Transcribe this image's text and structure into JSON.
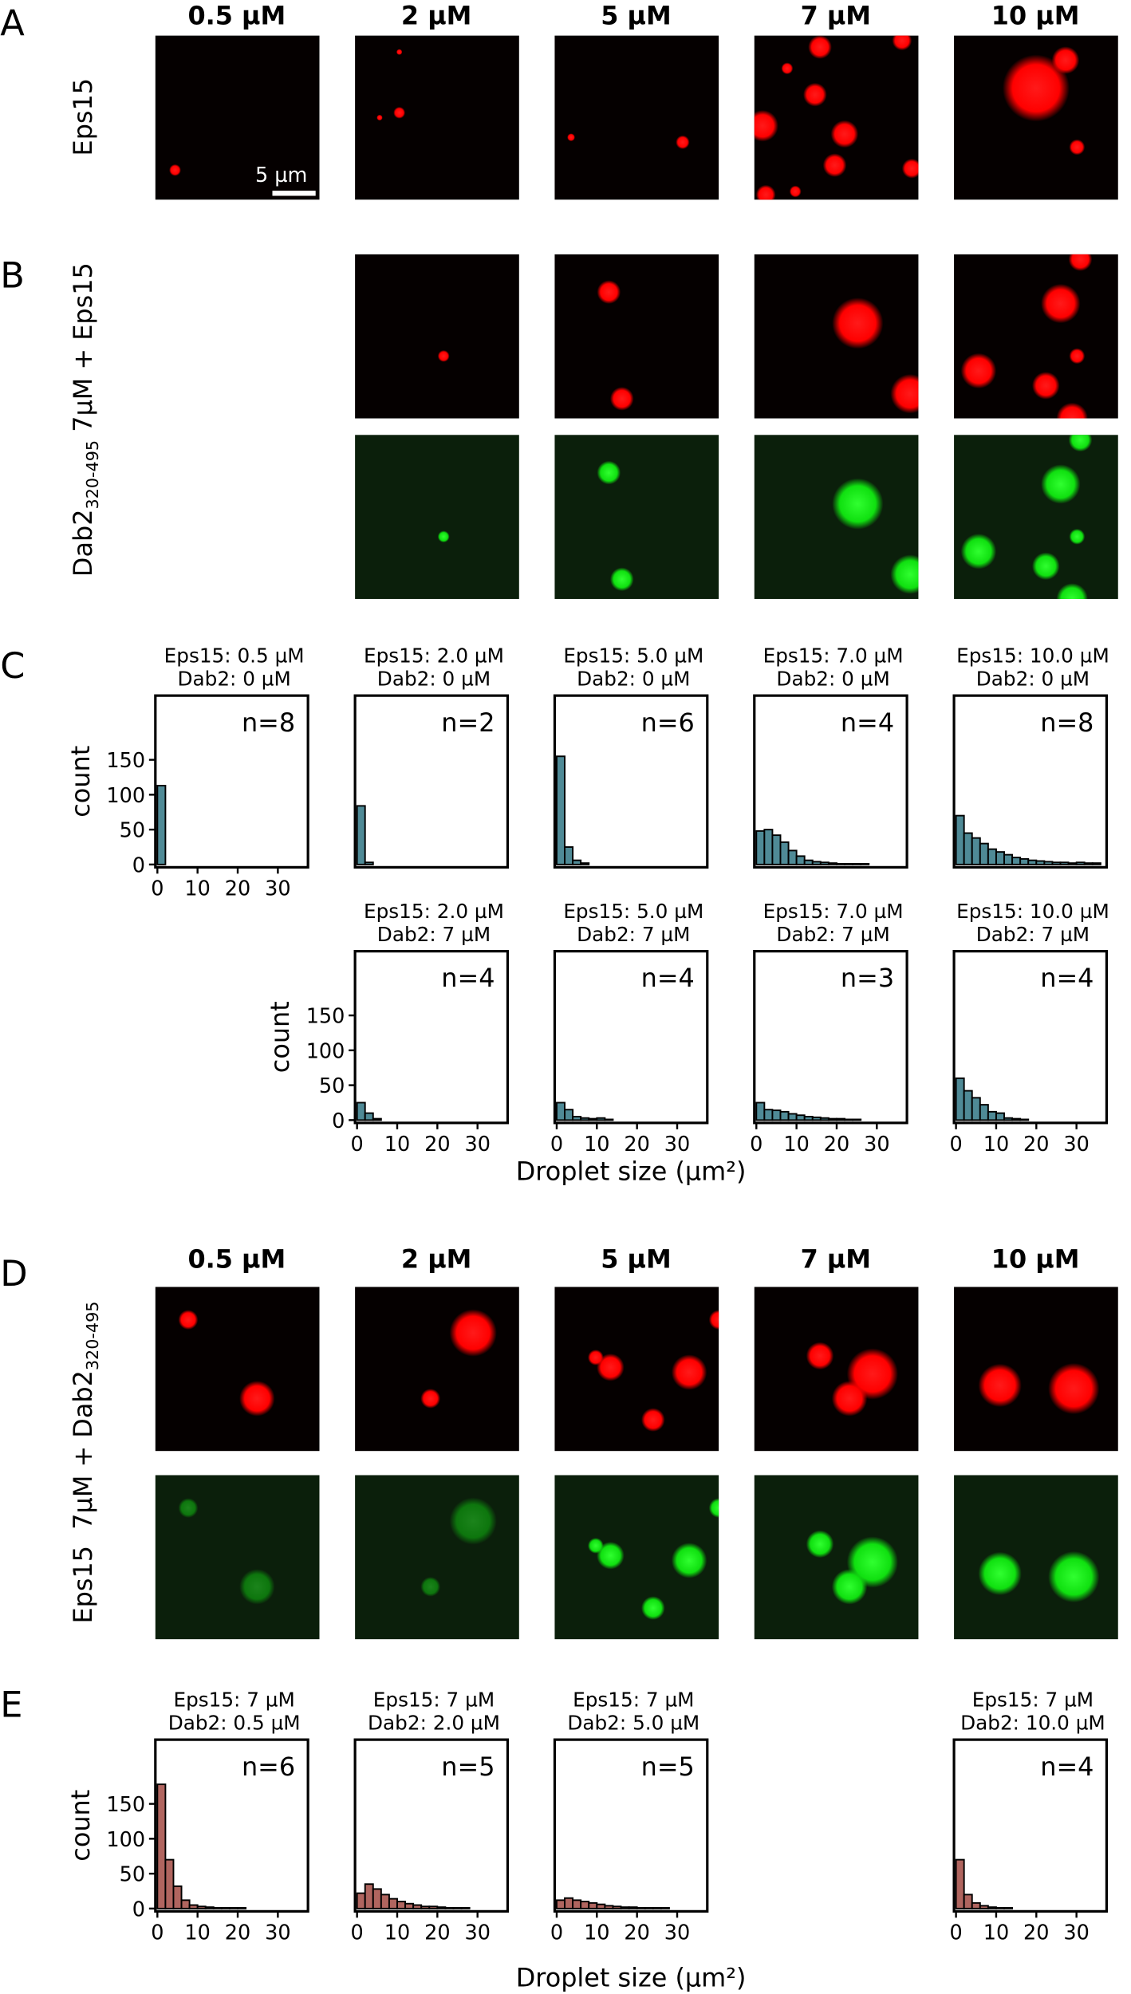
{
  "panel_labels": [
    "A",
    "B",
    "C",
    "D",
    "E"
  ],
  "panel_a": {
    "headers": [
      "0.5 µM",
      "2 µM",
      "5 µM",
      "7 µM",
      "10 µM"
    ],
    "row_label": "Eps15",
    "scale_bar": "5  µm"
  },
  "panel_b": {
    "row_label": "Dab2",
    "row_label_sub": "320-495",
    "row_label_rest": " 7µM + Eps15"
  },
  "panel_c": {
    "xlabel": "Droplet size (µm²)"
  },
  "panel_d": {
    "headers": [
      "0.5 µM",
      "2 µM",
      "5 µM",
      "7 µM",
      "10 µM"
    ],
    "row_label": "Eps15  7µM + Dab2",
    "row_label_sub": "320-495"
  },
  "panel_e": {
    "xlabel": "Droplet size (µm²)"
  },
  "chart_data": [
    {
      "type": "histogram",
      "title": [
        "Eps15: 0.5 µM",
        "Dab2: 0 µM"
      ],
      "annotation": "n=8",
      "color": "#4f8a96",
      "bins": [
        0,
        2,
        4,
        6,
        8,
        10,
        12,
        14,
        16,
        18,
        20,
        22,
        24,
        26,
        28,
        30,
        32,
        34,
        36
      ],
      "values": [
        113,
        0,
        0,
        0,
        0,
        0,
        0,
        0,
        0,
        0,
        0,
        0,
        0,
        0,
        0,
        0,
        0,
        0
      ],
      "xlim": [
        -0.5,
        37.5
      ],
      "ylim": [
        -4,
        242
      ],
      "xticks": [
        0,
        10,
        20,
        30
      ],
      "yticks": [
        0,
        50,
        100,
        150
      ],
      "ylabel": "count"
    },
    {
      "type": "histogram",
      "title": [
        "Eps15: 2.0 µM",
        "Dab2: 0 µM"
      ],
      "annotation": "n=2",
      "color": "#4f8a96",
      "bins": [
        0,
        2,
        4,
        6,
        8,
        10,
        12,
        14,
        16,
        18,
        20,
        22,
        24,
        26,
        28,
        30,
        32,
        34,
        36
      ],
      "values": [
        84,
        3,
        0,
        0,
        0,
        0,
        0,
        0,
        0,
        0,
        0,
        0,
        0,
        0,
        0,
        0,
        0,
        0
      ],
      "xlim": [
        -0.5,
        37.5
      ],
      "ylim": [
        -4,
        242
      ]
    },
    {
      "type": "histogram",
      "title": [
        "Eps15: 5.0 µM",
        "Dab2: 0 µM"
      ],
      "annotation": "n=6",
      "color": "#4f8a96",
      "bins": [
        0,
        2,
        4,
        6,
        8,
        10,
        12,
        14,
        16,
        18,
        20,
        22,
        24,
        26,
        28,
        30,
        32,
        34,
        36
      ],
      "values": [
        155,
        25,
        6,
        2,
        0,
        0,
        0,
        0,
        0,
        0,
        0,
        0,
        0,
        0,
        0,
        0,
        0,
        0
      ],
      "xlim": [
        -0.5,
        37.5
      ],
      "ylim": [
        -4,
        242
      ]
    },
    {
      "type": "histogram",
      "title": [
        "Eps15: 7.0 µM",
        "Dab2: 0 µM"
      ],
      "annotation": "n=4",
      "color": "#4f8a96",
      "bins": [
        0,
        2,
        4,
        6,
        8,
        10,
        12,
        14,
        16,
        18,
        20,
        22,
        24,
        26,
        28,
        30,
        32,
        34,
        36
      ],
      "values": [
        48,
        50,
        42,
        32,
        20,
        12,
        6,
        4,
        3,
        2,
        1,
        1,
        1,
        1,
        0,
        0,
        0,
        0
      ],
      "xlim": [
        -0.5,
        37.5
      ],
      "ylim": [
        -4,
        242
      ]
    },
    {
      "type": "histogram",
      "title": [
        "Eps15: 10.0 µM",
        "Dab2: 0 µM"
      ],
      "annotation": "n=8",
      "color": "#4f8a96",
      "bins": [
        0,
        2,
        4,
        6,
        8,
        10,
        12,
        14,
        16,
        18,
        20,
        22,
        24,
        26,
        28,
        30,
        32,
        34,
        36
      ],
      "values": [
        70,
        45,
        38,
        30,
        22,
        18,
        14,
        10,
        8,
        6,
        5,
        4,
        3,
        3,
        2,
        3,
        2,
        2
      ],
      "xlim": [
        -0.5,
        37.5
      ],
      "ylim": [
        -4,
        242
      ]
    },
    {
      "type": "histogram",
      "title": [
        "Eps15: 2.0 µM",
        "Dab2: 7 µM"
      ],
      "annotation": "n=4",
      "color": "#4f8a96",
      "bins": [
        0,
        2,
        4,
        6,
        8,
        10,
        12,
        14,
        16,
        18,
        20,
        22,
        24,
        26,
        28,
        30,
        32,
        34,
        36
      ],
      "values": [
        25,
        10,
        2,
        0,
        0,
        0,
        0,
        0,
        0,
        0,
        0,
        0,
        0,
        0,
        0,
        0,
        0,
        0
      ],
      "xlim": [
        -0.5,
        37.5
      ],
      "ylim": [
        -4,
        242
      ],
      "xticks": [
        0,
        10,
        20,
        30
      ],
      "yticks": [
        0,
        50,
        100,
        150
      ],
      "ylabel": "count"
    },
    {
      "type": "histogram",
      "title": [
        "Eps15: 5.0 µM",
        "Dab2: 7 µM"
      ],
      "annotation": "n=4",
      "color": "#4f8a96",
      "bins": [
        0,
        2,
        4,
        6,
        8,
        10,
        12,
        14,
        16,
        18,
        20,
        22,
        24,
        26,
        28,
        30,
        32,
        34,
        36
      ],
      "values": [
        25,
        15,
        5,
        3,
        2,
        3,
        1,
        0,
        0,
        0,
        0,
        0,
        0,
        0,
        0,
        0,
        0,
        0
      ],
      "xlim": [
        -0.5,
        37.5
      ],
      "ylim": [
        -4,
        242
      ],
      "xticks": [
        0,
        10,
        20,
        30
      ]
    },
    {
      "type": "histogram",
      "title": [
        "Eps15: 7.0 µM",
        "Dab2: 7 µM"
      ],
      "annotation": "n=3",
      "color": "#4f8a96",
      "bins": [
        0,
        2,
        4,
        6,
        8,
        10,
        12,
        14,
        16,
        18,
        20,
        22,
        24,
        26,
        28,
        30,
        32,
        34,
        36
      ],
      "values": [
        25,
        15,
        14,
        12,
        9,
        7,
        5,
        4,
        3,
        2,
        2,
        1,
        1,
        0,
        0,
        0,
        0,
        0
      ],
      "xlim": [
        -0.5,
        37.5
      ],
      "ylim": [
        -4,
        242
      ],
      "xticks": [
        0,
        10,
        20,
        30
      ]
    },
    {
      "type": "histogram",
      "title": [
        "Eps15: 10.0 µM",
        "Dab2: 7 µM"
      ],
      "annotation": "n=4",
      "color": "#4f8a96",
      "bins": [
        0,
        2,
        4,
        6,
        8,
        10,
        12,
        14,
        16,
        18,
        20,
        22,
        24,
        26,
        28,
        30,
        32,
        34,
        36
      ],
      "values": [
        60,
        42,
        32,
        22,
        12,
        10,
        3,
        2,
        1,
        0,
        0,
        0,
        0,
        0,
        0,
        0,
        0,
        0
      ],
      "xlim": [
        -0.5,
        37.5
      ],
      "ylim": [
        -4,
        242
      ],
      "xticks": [
        0,
        10,
        20,
        30
      ]
    },
    {
      "type": "histogram",
      "title": [
        "Eps15: 7 µM",
        "Dab2: 0.5 µM"
      ],
      "annotation": "n=6",
      "color": "#b0655f",
      "bins": [
        0,
        2,
        4,
        6,
        8,
        10,
        12,
        14,
        16,
        18,
        20,
        22,
        24,
        26,
        28,
        30,
        32,
        34,
        36
      ],
      "values": [
        178,
        70,
        32,
        12,
        5,
        3,
        2,
        1,
        1,
        1,
        1,
        0,
        0,
        0,
        0,
        0,
        0,
        0
      ],
      "xlim": [
        -0.5,
        37.5
      ],
      "ylim": [
        -4,
        242
      ],
      "xticks": [
        0,
        10,
        20,
        30
      ],
      "yticks": [
        0,
        50,
        100,
        150
      ],
      "ylabel": "count"
    },
    {
      "type": "histogram",
      "title": [
        "Eps15: 7 µM",
        "Dab2: 2.0 µM"
      ],
      "annotation": "n=5",
      "color": "#b0655f",
      "bins": [
        0,
        2,
        4,
        6,
        8,
        10,
        12,
        14,
        16,
        18,
        20,
        22,
        24,
        26,
        28,
        30,
        32,
        34,
        36
      ],
      "values": [
        22,
        35,
        28,
        20,
        14,
        10,
        7,
        5,
        3,
        3,
        2,
        1,
        1,
        1,
        0,
        0,
        0,
        0
      ],
      "xlim": [
        -0.5,
        37.5
      ],
      "ylim": [
        -4,
        242
      ],
      "xticks": [
        0,
        10,
        20,
        30
      ]
    },
    {
      "type": "histogram",
      "title": [
        "Eps15: 7 µM",
        "Dab2: 5.0 µM"
      ],
      "annotation": "n=5",
      "color": "#b0655f",
      "bins": [
        0,
        2,
        4,
        6,
        8,
        10,
        12,
        14,
        16,
        18,
        20,
        22,
        24,
        26,
        28,
        30,
        32,
        34,
        36
      ],
      "values": [
        12,
        15,
        12,
        10,
        8,
        6,
        4,
        3,
        2,
        2,
        1,
        1,
        1,
        1,
        0,
        0,
        0,
        0
      ],
      "xlim": [
        -0.5,
        37.5
      ],
      "ylim": [
        -4,
        242
      ],
      "xticks": [
        0,
        10,
        20,
        30
      ]
    },
    {
      "type": "histogram",
      "title": [
        "Eps15: 7 µM",
        "Dab2: 10.0 µM"
      ],
      "annotation": "n=4",
      "color": "#b0655f",
      "bins": [
        0,
        2,
        4,
        6,
        8,
        10,
        12,
        14,
        16,
        18,
        20,
        22,
        24,
        26,
        28,
        30,
        32,
        34,
        36
      ],
      "values": [
        70,
        20,
        8,
        4,
        2,
        1,
        1,
        0,
        0,
        0,
        0,
        0,
        0,
        0,
        0,
        0,
        0,
        0
      ],
      "xlim": [
        -0.5,
        37.5
      ],
      "ylim": [
        -4,
        242
      ],
      "xticks": [
        0,
        10,
        20,
        30
      ]
    }
  ]
}
